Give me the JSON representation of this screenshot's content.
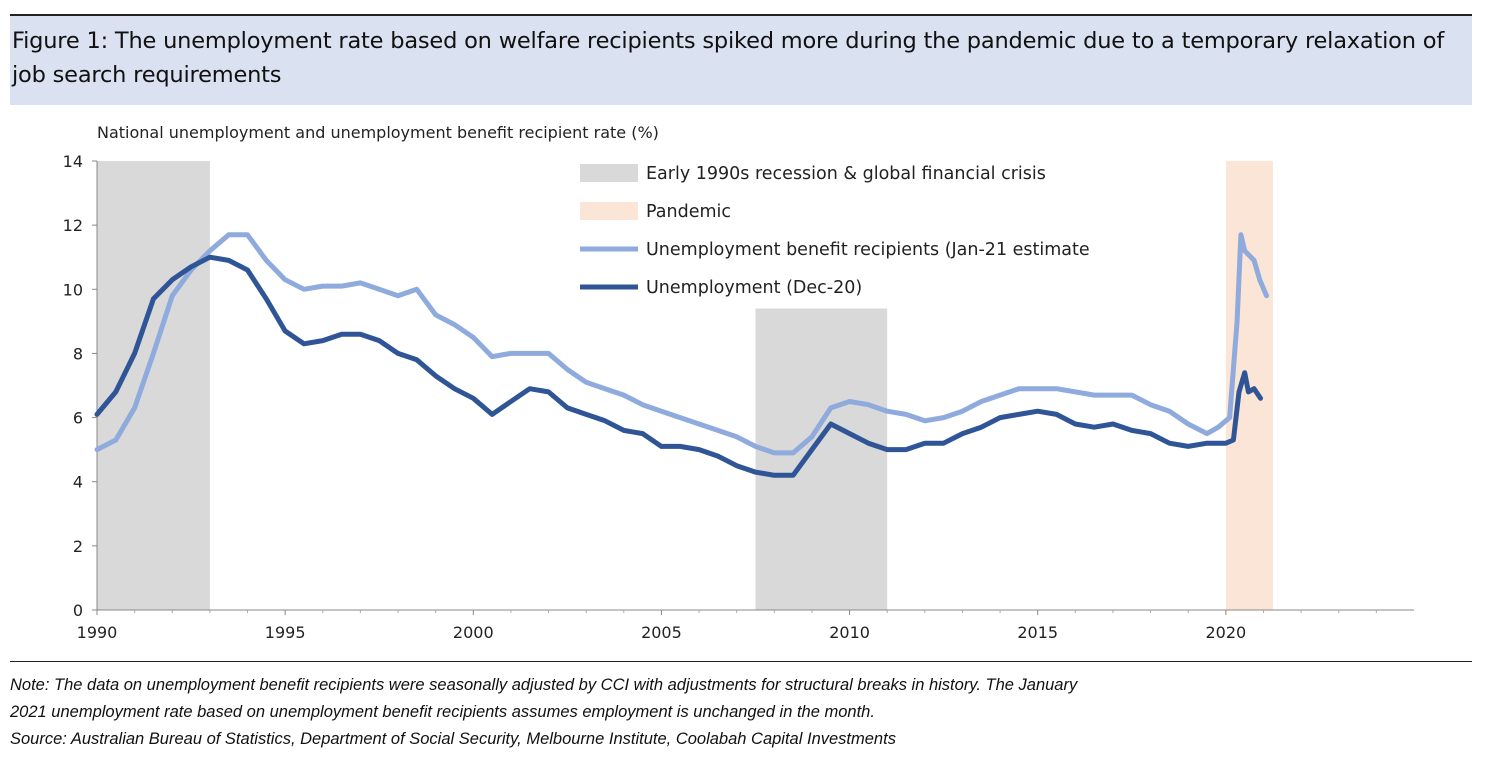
{
  "title": "Figure 1: The unemployment rate based on welfare recipients spiked more during the pandemic due to a temporary relaxation of job search requirements",
  "note_lines": [
    "Note: The data on unemployment benefit recipients were seasonally adjusted by CCI with adjustments for structural breaks in history. The January",
    "2021 unemployment rate based on unemployment benefit recipients assumes employment is unchanged in the month.",
    "Source: Australian Bureau of Statistics, Department of Social Security, Melbourne Institute, Coolabah Capital Investments"
  ],
  "chart_data": {
    "type": "line",
    "title": "National unemployment and unemployment benefit recipient rate (%)",
    "xlabel": "",
    "ylabel": "National unemployment and unemployment benefit recipient rate (%)",
    "xlim": [
      1990,
      2025
    ],
    "ylim": [
      0,
      14
    ],
    "xticks": [
      1990,
      1995,
      2000,
      2005,
      2010,
      2015,
      2020
    ],
    "yticks": [
      0,
      2,
      4,
      6,
      8,
      10,
      12,
      14
    ],
    "grid": false,
    "legend_position": "top-right",
    "colors": {
      "recession": "#d9d9d9",
      "pandemic": "#fbe5d6",
      "benefit": "#8faadc",
      "unemployment": "#2f5597"
    },
    "shaded_regions": [
      {
        "name": "Early 1990s recession & global financial crisis",
        "from": 1990,
        "to": 1993,
        "ymax": 14,
        "kind": "recession"
      },
      {
        "name": "Early 1990s recession & global financial crisis",
        "from": 2007.5,
        "to": 2011,
        "ymax": 9.4,
        "kind": "recession"
      },
      {
        "name": "Pandemic",
        "from": 2020,
        "to": 2021.25,
        "ymax": 14,
        "kind": "pandemic"
      }
    ],
    "legend": [
      {
        "label": "Early 1990s recession & global financial crisis",
        "kind": "recession"
      },
      {
        "label": "Pandemic",
        "kind": "pandemic"
      },
      {
        "label": "Unemployment benefit recipients (Jan-21 estimate",
        "kind": "benefit"
      },
      {
        "label": "Unemployment (Dec-20)",
        "kind": "unemployment"
      }
    ],
    "series": [
      {
        "name": "Unemployment benefit recipients (Jan-21 estimate",
        "kind": "benefit",
        "x": [
          1990,
          1990.5,
          1991,
          1991.5,
          1992,
          1992.5,
          1993,
          1993.5,
          1994,
          1994.5,
          1995,
          1995.5,
          1996,
          1996.5,
          1997,
          1997.5,
          1998,
          1998.5,
          1999,
          1999.5,
          2000,
          2000.5,
          2001,
          2001.5,
          2002,
          2002.5,
          2003,
          2003.5,
          2004,
          2004.5,
          2005,
          2005.5,
          2006,
          2006.5,
          2007,
          2007.5,
          2008,
          2008.5,
          2009,
          2009.5,
          2010,
          2010.5,
          2011,
          2011.5,
          2012,
          2012.5,
          2013,
          2013.5,
          2014,
          2014.5,
          2015,
          2015.5,
          2016,
          2016.5,
          2017,
          2017.5,
          2018,
          2018.5,
          2019,
          2019.5,
          2019.8,
          2020.1,
          2020.3,
          2020.4,
          2020.5,
          2020.75,
          2020.9,
          2021.08
        ],
        "values": [
          5.0,
          5.3,
          6.3,
          8.0,
          9.8,
          10.6,
          11.2,
          11.7,
          11.7,
          10.9,
          10.3,
          10.0,
          10.1,
          10.1,
          10.2,
          10.0,
          9.8,
          10.0,
          9.2,
          8.9,
          8.5,
          7.9,
          8.0,
          8.0,
          8.0,
          7.5,
          7.1,
          6.9,
          6.7,
          6.4,
          6.2,
          6.0,
          5.8,
          5.6,
          5.4,
          5.1,
          4.9,
          4.9,
          5.4,
          6.3,
          6.5,
          6.4,
          6.2,
          6.1,
          5.9,
          6.0,
          6.2,
          6.5,
          6.7,
          6.9,
          6.9,
          6.9,
          6.8,
          6.7,
          6.7,
          6.7,
          6.4,
          6.2,
          5.8,
          5.5,
          5.7,
          6.0,
          9.0,
          11.7,
          11.2,
          10.9,
          10.3,
          9.8
        ]
      },
      {
        "name": "Unemployment (Dec-20)",
        "kind": "unemployment",
        "x": [
          1990,
          1990.5,
          1991,
          1991.5,
          1992,
          1992.5,
          1993,
          1993.5,
          1994,
          1994.5,
          1995,
          1995.5,
          1996,
          1996.5,
          1997,
          1997.5,
          1998,
          1998.5,
          1999,
          1999.5,
          2000,
          2000.5,
          2001,
          2001.5,
          2002,
          2002.5,
          2003,
          2003.5,
          2004,
          2004.5,
          2005,
          2005.5,
          2006,
          2006.5,
          2007,
          2007.5,
          2008,
          2008.5,
          2009,
          2009.5,
          2010,
          2010.5,
          2011,
          2011.5,
          2012,
          2012.5,
          2013,
          2013.5,
          2014,
          2014.5,
          2015,
          2015.5,
          2016,
          2016.5,
          2017,
          2017.5,
          2018,
          2018.5,
          2019,
          2019.5,
          2020,
          2020.2,
          2020.35,
          2020.5,
          2020.6,
          2020.75,
          2020.92
        ],
        "values": [
          6.1,
          6.8,
          8.0,
          9.7,
          10.3,
          10.7,
          11.0,
          10.9,
          10.6,
          9.7,
          8.7,
          8.3,
          8.4,
          8.6,
          8.6,
          8.4,
          8.0,
          7.8,
          7.3,
          6.9,
          6.6,
          6.1,
          6.5,
          6.9,
          6.8,
          6.3,
          6.1,
          5.9,
          5.6,
          5.5,
          5.1,
          5.1,
          5.0,
          4.8,
          4.5,
          4.3,
          4.2,
          4.2,
          5.0,
          5.8,
          5.5,
          5.2,
          5.0,
          5.0,
          5.2,
          5.2,
          5.5,
          5.7,
          6.0,
          6.1,
          6.2,
          6.1,
          5.8,
          5.7,
          5.8,
          5.6,
          5.5,
          5.2,
          5.1,
          5.2,
          5.2,
          5.3,
          6.8,
          7.4,
          6.8,
          6.9,
          6.6
        ]
      }
    ]
  }
}
